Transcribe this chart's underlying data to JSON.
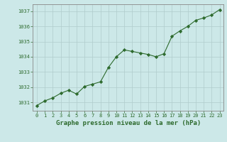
{
  "x": [
    0,
    1,
    2,
    3,
    4,
    5,
    6,
    7,
    8,
    9,
    10,
    11,
    12,
    13,
    14,
    15,
    16,
    17,
    18,
    19,
    20,
    21,
    22,
    23
  ],
  "y": [
    1030.8,
    1031.1,
    1031.3,
    1031.6,
    1031.8,
    1031.55,
    1032.05,
    1032.2,
    1032.35,
    1033.3,
    1034.0,
    1034.45,
    1034.35,
    1034.25,
    1034.15,
    1034.0,
    1034.2,
    1035.35,
    1035.7,
    1036.0,
    1036.4,
    1036.55,
    1036.75,
    1037.1
  ],
  "line_color": "#2d6a2d",
  "marker": "D",
  "marker_size": 2.2,
  "bg_color": "#cce8e8",
  "grid_color": "#b0cccc",
  "ylabel_ticks": [
    1031,
    1032,
    1033,
    1034,
    1035,
    1036,
    1037
  ],
  "xtick_labels": [
    "0",
    "1",
    "2",
    "3",
    "4",
    "5",
    "6",
    "7",
    "8",
    "9",
    "10",
    "11",
    "12",
    "13",
    "14",
    "15",
    "16",
    "17",
    "18",
    "19",
    "20",
    "21",
    "22",
    "23"
  ],
  "xlabel": "Graphe pression niveau de la mer (hPa)",
  "ylim": [
    1030.45,
    1037.45
  ],
  "xlim": [
    -0.5,
    23.5
  ],
  "xlabel_color": "#2d6a2d",
  "xlabel_fontsize": 6.5,
  "tick_color": "#2d6a2d",
  "tick_fontsize": 5.0,
  "line_width": 0.8
}
